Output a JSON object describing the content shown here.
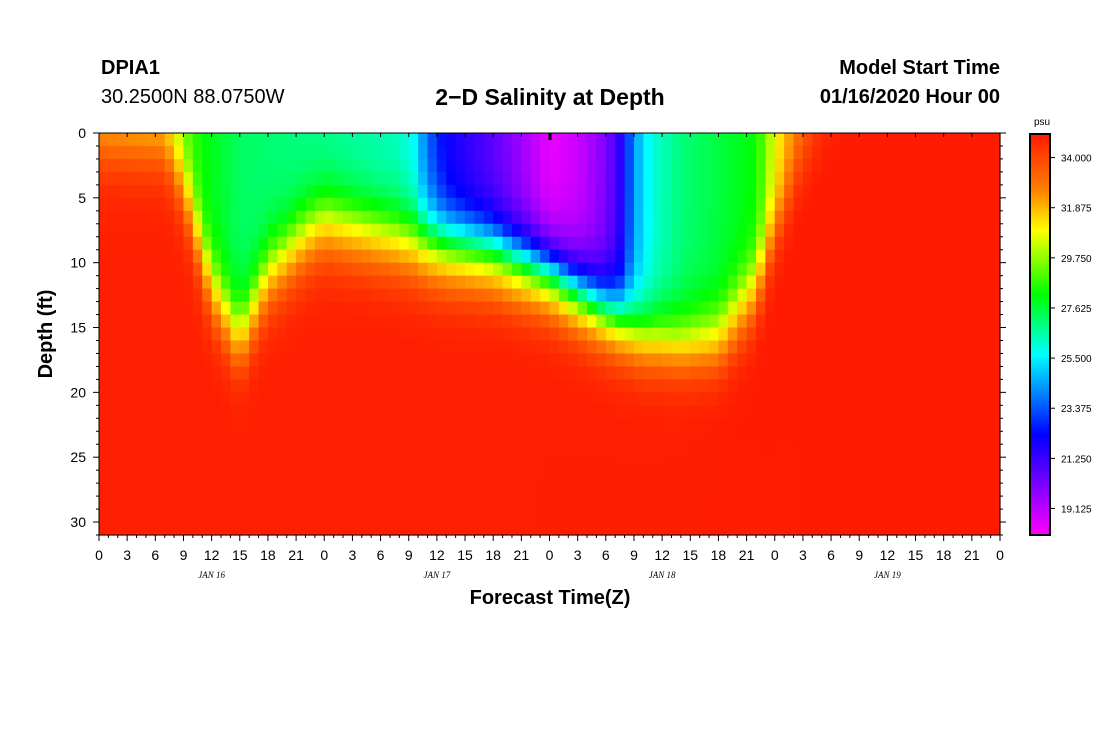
{
  "header": {
    "station": "DPIA1",
    "coords": "30.2500N 88.0750W",
    "title": "2−D Salinity at Depth",
    "start_label": "Model Start Time",
    "start_value": "01/16/2020 Hour 00"
  },
  "chart_data": {
    "type": "heatmap",
    "title": "2−D Salinity at Depth",
    "xlabel": "Forecast Time(Z)",
    "ylabel": "Depth (ft)",
    "xlim": [
      0,
      96
    ],
    "ylim": [
      31,
      0
    ],
    "x_ticks": [
      0,
      3,
      6,
      9,
      12,
      15,
      18,
      21,
      24,
      27,
      30,
      33,
      36,
      39,
      42,
      45,
      48,
      51,
      54,
      57,
      60,
      63,
      66,
      69,
      72,
      75,
      78,
      81,
      84,
      87,
      90,
      93,
      96
    ],
    "x_tick_labels": [
      "0",
      "3",
      "6",
      "9",
      "12",
      "15",
      "18",
      "21",
      "0",
      "3",
      "6",
      "9",
      "12",
      "15",
      "18",
      "21",
      "0",
      "3",
      "6",
      "9",
      "12",
      "15",
      "18",
      "21",
      "0",
      "3",
      "6",
      "9",
      "12",
      "15",
      "18",
      "21",
      "0"
    ],
    "day_labels": [
      {
        "x": 12,
        "text": "JAN 16"
      },
      {
        "x": 36,
        "text": "JAN 17"
      },
      {
        "x": 60,
        "text": "JAN 18"
      },
      {
        "x": 84,
        "text": "JAN 19"
      }
    ],
    "y_ticks": [
      0,
      5,
      10,
      15,
      20,
      25,
      30
    ],
    "y_tick_labels": [
      "0",
      "5",
      "10",
      "15",
      "20",
      "25",
      "30"
    ],
    "colorbar": {
      "unit": "psu",
      "min": 18.0,
      "max": 35.0,
      "labels": [
        "34.000",
        "31.875",
        "29.750",
        "27.625",
        "25.500",
        "23.375",
        "21.250",
        "19.125"
      ],
      "label_values": [
        34.0,
        31.875,
        29.75,
        27.625,
        25.5,
        23.375,
        21.25,
        19.125
      ]
    },
    "colors": {
      "magenta": "#ff00ff",
      "blue": "#0000ff",
      "cyan": "#00ffff",
      "green": "#00ff00",
      "yellow": "#ffff00",
      "orange": "#ff8000",
      "red": "#ff1a00"
    },
    "grid": false
  }
}
